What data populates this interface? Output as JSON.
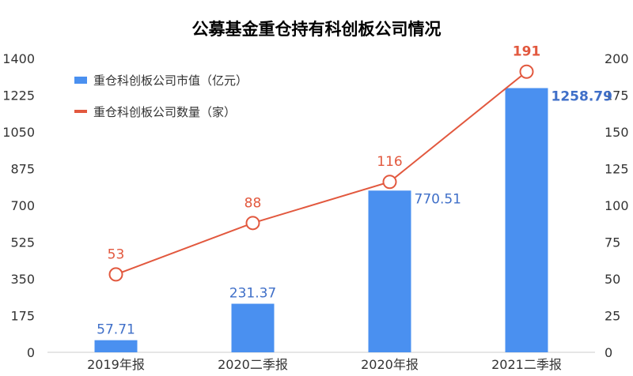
{
  "chart_data": {
    "type": "bar",
    "title": "公募基金重仓持有科创板公司情况",
    "categories": [
      "2019年报",
      "2020二季报",
      "2020年报",
      "2021二季报"
    ],
    "y_left": {
      "min": 0,
      "max": 1400,
      "ticks": [
        0,
        175,
        350,
        525,
        700,
        875,
        1050,
        1225,
        1400
      ]
    },
    "y_right": {
      "min": 0,
      "max": 200,
      "ticks": [
        0,
        25,
        50,
        75,
        100,
        125,
        150,
        175,
        200
      ]
    },
    "series": [
      {
        "name": "重仓科创板公司市值（亿元）",
        "kind": "bar",
        "axis": "left",
        "color": "#4a90f0",
        "values": [
          57.71,
          231.37,
          770.51,
          1258.79
        ],
        "labels": [
          "57.71",
          "231.37",
          "770.51",
          "1258.79"
        ]
      },
      {
        "name": "重仓科创板公司数量（家）",
        "kind": "line",
        "axis": "right",
        "color": "#e2583e",
        "values": [
          53,
          88,
          116,
          191
        ],
        "labels": [
          "53",
          "88",
          "116",
          "191"
        ]
      }
    ],
    "legend": "top-left",
    "grid": false
  }
}
